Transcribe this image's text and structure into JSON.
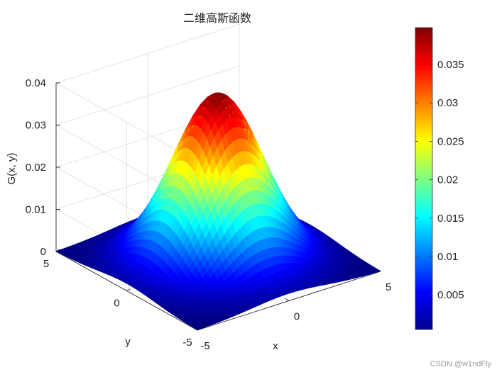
{
  "chart_data": {
    "type": "surface",
    "title": "二维高斯函数",
    "xlabel": "x",
    "ylabel": "y",
    "zlabel": "G(x, y)",
    "function": "G(x, y) = exp(-(x^2 + y^2) / (2*sigma^2)) / (2*pi*sigma^2)",
    "sigma": 2,
    "xlim": [
      -5,
      5
    ],
    "ylim": [
      -5,
      5
    ],
    "zlim": [
      0,
      0.04
    ],
    "peak": {
      "x": 0,
      "y": 0,
      "z": 0.0398
    },
    "x_ticks": [
      "-5",
      "0",
      "5"
    ],
    "y_ticks": [
      "-5",
      "0",
      "5"
    ],
    "z_ticks": [
      "0",
      "0.01",
      "0.02",
      "0.03",
      "0.04"
    ],
    "colormap": "jet",
    "colorbar": {
      "range": [
        0.0005,
        0.0398
      ],
      "ticks": [
        "0.005",
        "0.01",
        "0.015",
        "0.02",
        "0.025",
        "0.03",
        "0.035"
      ],
      "tick_values": [
        0.005,
        0.01,
        0.015,
        0.02,
        0.025,
        0.03,
        0.035
      ]
    },
    "grid": true
  },
  "watermark": "CSDN @w1ndFly"
}
